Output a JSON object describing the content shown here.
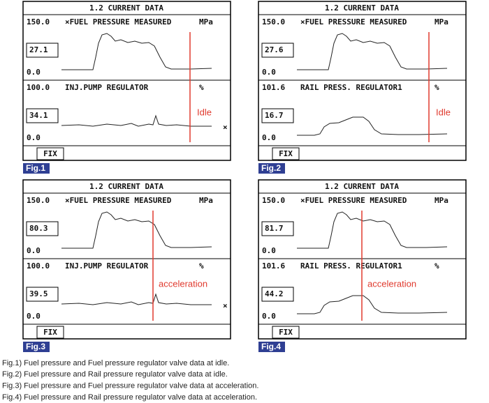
{
  "figures": [
    {
      "screen_title": "1.2 CURRENT DATA",
      "top": {
        "max": "150.0",
        "label": "×FUEL PRESSURE MEASURED",
        "unit": "MPa",
        "value": "27.1",
        "min": "0.0"
      },
      "bottom": {
        "max": "100.0",
        "label": "INJ.PUMP REGULATOR",
        "unit": "%",
        "value": "34.1",
        "min": "0.0",
        "marker": "×"
      },
      "note": "Idle",
      "button": "FIX",
      "tag": "Fig.1"
    },
    {
      "screen_title": "1.2 CURRENT DATA",
      "top": {
        "max": "150.0",
        "label": "×FUEL PRESSURE MEASURED",
        "unit": "MPa",
        "value": "27.6",
        "min": "0.0"
      },
      "bottom": {
        "max": "101.6",
        "label": "RAIL PRESS. REGULATOR1",
        "unit": "%",
        "value": "16.7",
        "min": "0.0"
      },
      "note": "Idle",
      "button": "FIX",
      "tag": "Fig.2"
    },
    {
      "screen_title": "1.2 CURRENT DATA",
      "top": {
        "max": "150.0",
        "label": "×FUEL PRESSURE MEASURED",
        "unit": "MPa",
        "value": "80.3",
        "min": "0.0"
      },
      "bottom": {
        "max": "100.0",
        "label": "INJ.PUMP REGULATOR",
        "unit": "%",
        "value": "39.5",
        "min": "0.0",
        "marker": "×"
      },
      "note": "acceleration",
      "button": "FIX",
      "tag": "Fig.3"
    },
    {
      "screen_title": "1.2 CURRENT DATA",
      "top": {
        "max": "150.0",
        "label": "×FUEL PRESSURE MEASURED",
        "unit": "MPa",
        "value": "81.7",
        "min": "0.0"
      },
      "bottom": {
        "max": "101.6",
        "label": "RAIL PRESS. REGULATOR1",
        "unit": "%",
        "value": "44.2",
        "min": "0.0"
      },
      "note": "acceleration",
      "button": "FIX",
      "tag": "Fig.4"
    }
  ],
  "captions": [
    "Fig.1) Fuel pressure and Fuel pressure regulator valve data at idle.",
    "Fig.2) Fuel pressure and Rail pressure regulator valve data at idle.",
    "Fig.3) Fuel pressure and Fuel pressure regulator valve data at acceleration.",
    "Fig.4) Fuel pressure and Rail pressure regulator valve data at acceleration."
  ]
}
